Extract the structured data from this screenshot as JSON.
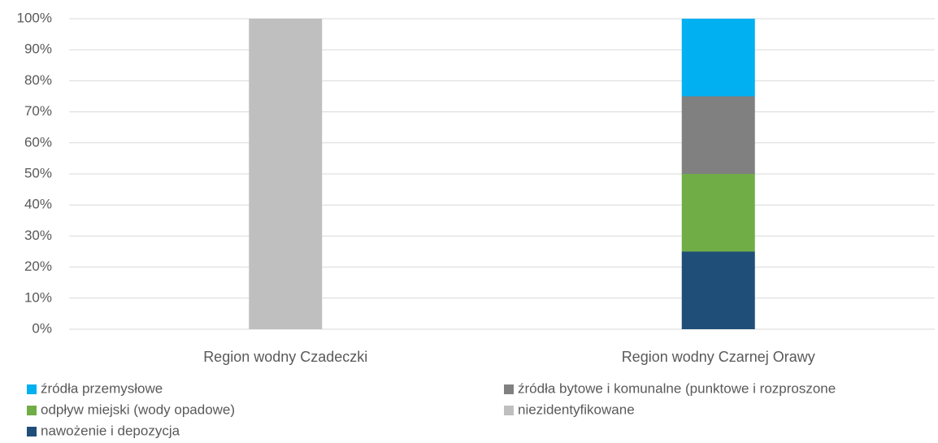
{
  "chart_data": {
    "type": "stacked_bar",
    "categories": [
      "Region wodny Czadeczki",
      "Region wodny Czarnej Orawy"
    ],
    "series": [
      {
        "name": "źródła przemysłowe",
        "color": "#00b0f0",
        "values": [
          0,
          25
        ]
      },
      {
        "name": "źródła bytowe i komunalne (punktowe i rozproszone",
        "color": "#808080",
        "values": [
          0,
          25
        ]
      },
      {
        "name": "odpływ miejski (wody opadowe)",
        "color": "#70ad47",
        "values": [
          0,
          25
        ]
      },
      {
        "name": "niezidentyfikowane",
        "color": "#bfbfbf",
        "values": [
          100,
          0
        ]
      },
      {
        "name": "nawożenie i depozycja",
        "color": "#1f4e79",
        "values": [
          0,
          25
        ]
      }
    ],
    "ylim": [
      0,
      100
    ],
    "yticks": [
      {
        "value": 0,
        "label": "0%"
      },
      {
        "value": 10,
        "label": "10%"
      },
      {
        "value": 20,
        "label": "20%"
      },
      {
        "value": 30,
        "label": "30%"
      },
      {
        "value": 40,
        "label": "40%"
      },
      {
        "value": 50,
        "label": "50%"
      },
      {
        "value": 60,
        "label": "60%"
      },
      {
        "value": 70,
        "label": "70%"
      },
      {
        "value": 80,
        "label": "80%"
      },
      {
        "value": 90,
        "label": "90%"
      },
      {
        "value": 100,
        "label": "100%"
      }
    ],
    "grid": true,
    "legend": "bottom"
  }
}
